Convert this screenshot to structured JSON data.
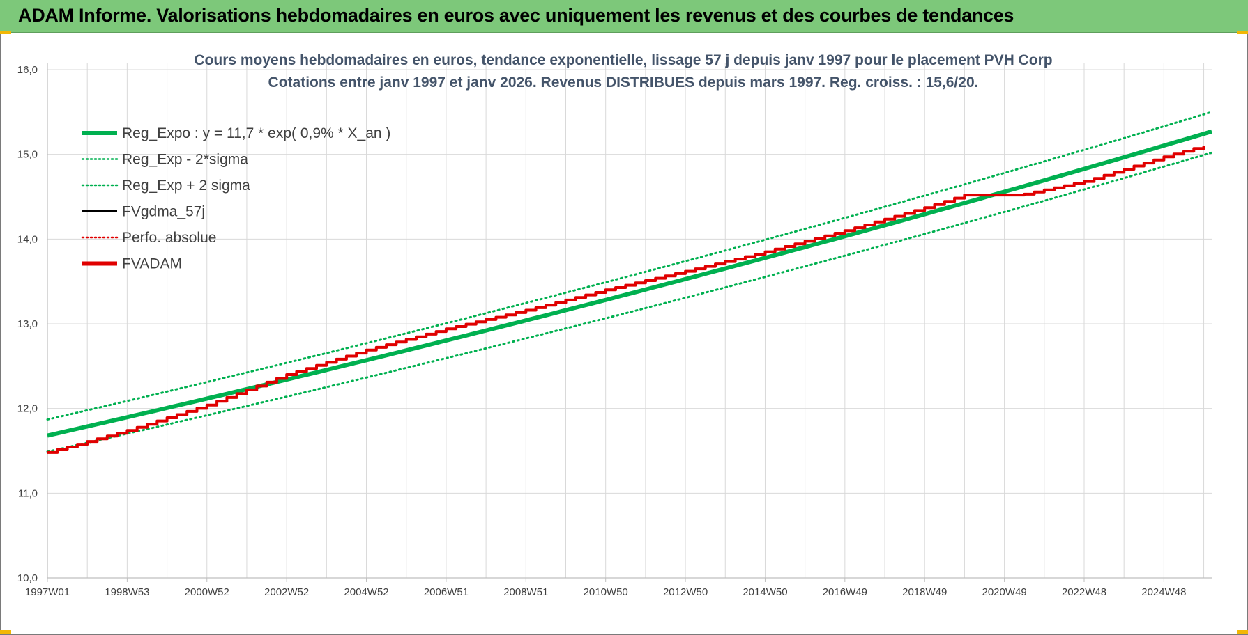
{
  "header": {
    "title": "ADAM Informe. Valorisations hebdomadaires en euros avec uniquement les revenus et des courbes de tendances"
  },
  "colors": {
    "header_bg": "#7dc87a",
    "green": "#00b050",
    "red": "#e00000",
    "black": "#000000",
    "grid": "#d9d9d9"
  },
  "chart_data": {
    "type": "line",
    "title_lines": [
      "Cours moyens hebdomadaires en euros, tendance exponentielle, lissage 57 j depuis janv 1997 pour le placement PVH Corp",
      "Cotations entre janv 1997 et janv 2026. Revenus DISTRIBUES depuis mars 1997. Reg. croiss. : 15,6/20."
    ],
    "y_ticks": [
      "10,0",
      "11,0",
      "12,0",
      "13,0",
      "14,0",
      "15,0",
      "16,0"
    ],
    "ylim": [
      10,
      16
    ],
    "x_tick_labels": [
      "1997W01",
      "1998W53",
      "2000W52",
      "2002W52",
      "2004W52",
      "2006W51",
      "2008W51",
      "2010W50",
      "2012W50",
      "2014W50",
      "2016W49",
      "2018W49",
      "2020W49",
      "2022W48",
      "2024W48"
    ],
    "x_tick_years": [
      1997.0,
      1999.0,
      2001.0,
      2003.0,
      2005.0,
      2007.0,
      2009.0,
      2011.0,
      2013.0,
      2015.0,
      2017.0,
      2019.0,
      2021.0,
      2023.0,
      2025.0
    ],
    "xlim": [
      1997.0,
      2026.2
    ],
    "grid": true,
    "legend_position": "top-left",
    "legend": [
      {
        "label": "Reg_Expo : y = 11,7 * exp( 0,9% *  X_an )",
        "color": "#00b050",
        "style": "solid-thick"
      },
      {
        "label": "Reg_Exp - 2*sigma",
        "color": "#00b050",
        "style": "dotted"
      },
      {
        "label": "Reg_Exp + 2 sigma",
        "color": "#00b050",
        "style": "dotted"
      },
      {
        "label": "FVgdma_57j",
        "color": "#000000",
        "style": "solid"
      },
      {
        "label": "Perfo. absolue",
        "color": "#e00000",
        "style": "dotted"
      },
      {
        "label": "FVADAM",
        "color": "#e00000",
        "style": "solid-thick"
      }
    ],
    "series": [
      {
        "name": "Reg_Expo : y = 11,7 * exp( 0,9% *  X_an )",
        "x": [
          1997.0,
          2026.2
        ],
        "values": [
          11.68,
          15.27
        ],
        "curve": "exponential"
      },
      {
        "name": "Reg_Exp - 2*sigma",
        "x": [
          1997.0,
          2026.2
        ],
        "values": [
          11.49,
          15.02
        ],
        "curve": "exponential"
      },
      {
        "name": "Reg_Exp + 2 sigma",
        "x": [
          1997.0,
          2026.2
        ],
        "values": [
          11.87,
          15.5
        ],
        "curve": "exponential"
      },
      {
        "name": "FVADAM",
        "x": [
          1997.0,
          1999.0,
          2001.0,
          2003.0,
          2005.0,
          2007.0,
          2009.0,
          2011.0,
          2013.0,
          2015.0,
          2017.0,
          2019.0,
          2020.0,
          2021.4,
          2023.0,
          2025.0,
          2026.2
        ],
        "values": [
          11.48,
          11.74,
          12.04,
          12.4,
          12.69,
          12.94,
          13.16,
          13.4,
          13.62,
          13.85,
          14.1,
          14.37,
          14.52,
          14.52,
          14.68,
          14.97,
          15.13
        ],
        "step": true
      }
    ]
  }
}
